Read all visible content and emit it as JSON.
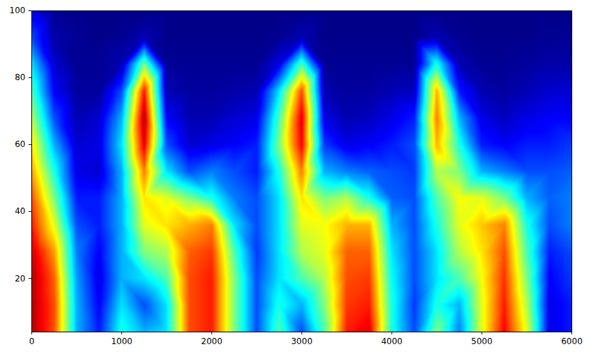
{
  "chart_data": {
    "type": "heatmap",
    "x": [
      0,
      250,
      500,
      750,
      1000,
      1250,
      1500,
      1750,
      2000,
      2250,
      2500,
      2750,
      3000,
      3250,
      3500,
      3750,
      4000,
      4250,
      4500,
      4750,
      5000,
      5250,
      5500,
      5750,
      6000
    ],
    "y": [
      4,
      12,
      20,
      28,
      36,
      44,
      52,
      60,
      68,
      76,
      84,
      92,
      100
    ],
    "values": [
      [
        0.95,
        0.95,
        0.95,
        0.92,
        0.85,
        0.8,
        0.72,
        0.65,
        0.55,
        0.45,
        0.35,
        0.2,
        0.1
      ],
      [
        0.8,
        0.8,
        0.78,
        0.72,
        0.6,
        0.5,
        0.4,
        0.3,
        0.2,
        0.12,
        0.08,
        0.04,
        0.02
      ],
      [
        0.3,
        0.3,
        0.28,
        0.25,
        0.2,
        0.15,
        0.1,
        0.08,
        0.05,
        0.03,
        0.02,
        0.02,
        0.01
      ],
      [
        0.15,
        0.12,
        0.1,
        0.12,
        0.15,
        0.15,
        0.08,
        0.1,
        0.08,
        0.03,
        0.02,
        0.01,
        0.01
      ],
      [
        0.4,
        0.35,
        0.3,
        0.3,
        0.3,
        0.3,
        0.3,
        0.35,
        0.3,
        0.2,
        0.05,
        0.02,
        0.01
      ],
      [
        0.3,
        0.2,
        0.35,
        0.5,
        0.6,
        0.65,
        0.75,
        0.9,
        0.95,
        0.85,
        0.5,
        0.05,
        0.01
      ],
      [
        0.35,
        0.35,
        0.45,
        0.55,
        0.65,
        0.6,
        0.35,
        0.2,
        0.12,
        0.05,
        0.02,
        0.01,
        0.01
      ],
      [
        0.8,
        0.8,
        0.8,
        0.78,
        0.7,
        0.5,
        0.2,
        0.08,
        0.05,
        0.03,
        0.02,
        0.01,
        0.01
      ],
      [
        0.85,
        0.85,
        0.85,
        0.82,
        0.75,
        0.4,
        0.25,
        0.1,
        0.05,
        0.03,
        0.02,
        0.01,
        0.01
      ],
      [
        0.5,
        0.5,
        0.5,
        0.45,
        0.35,
        0.25,
        0.2,
        0.12,
        0.08,
        0.04,
        0.02,
        0.01,
        0.01
      ],
      [
        0.2,
        0.2,
        0.2,
        0.18,
        0.2,
        0.2,
        0.15,
        0.15,
        0.1,
        0.05,
        0.02,
        0.01,
        0.01
      ],
      [
        0.45,
        0.4,
        0.35,
        0.35,
        0.35,
        0.35,
        0.4,
        0.5,
        0.45,
        0.35,
        0.1,
        0.02,
        0.01
      ],
      [
        0.2,
        0.3,
        0.45,
        0.55,
        0.6,
        0.65,
        0.75,
        0.88,
        0.9,
        0.8,
        0.45,
        0.05,
        0.01
      ],
      [
        0.45,
        0.5,
        0.55,
        0.6,
        0.62,
        0.5,
        0.3,
        0.18,
        0.1,
        0.05,
        0.02,
        0.01,
        0.01
      ],
      [
        0.85,
        0.82,
        0.8,
        0.78,
        0.7,
        0.55,
        0.25,
        0.1,
        0.05,
        0.03,
        0.02,
        0.01,
        0.01
      ],
      [
        0.9,
        0.85,
        0.82,
        0.78,
        0.7,
        0.4,
        0.22,
        0.12,
        0.06,
        0.03,
        0.02,
        0.01,
        0.01
      ],
      [
        0.4,
        0.4,
        0.38,
        0.35,
        0.3,
        0.22,
        0.2,
        0.15,
        0.1,
        0.05,
        0.02,
        0.01,
        0.01
      ],
      [
        0.2,
        0.18,
        0.2,
        0.2,
        0.2,
        0.2,
        0.18,
        0.2,
        0.15,
        0.06,
        0.02,
        0.01,
        0.01
      ],
      [
        0.5,
        0.4,
        0.35,
        0.35,
        0.4,
        0.45,
        0.55,
        0.7,
        0.75,
        0.7,
        0.4,
        0.05,
        0.01
      ],
      [
        0.25,
        0.3,
        0.45,
        0.55,
        0.6,
        0.62,
        0.5,
        0.4,
        0.3,
        0.15,
        0.05,
        0.02,
        0.01
      ],
      [
        0.6,
        0.6,
        0.62,
        0.65,
        0.68,
        0.6,
        0.3,
        0.15,
        0.1,
        0.05,
        0.02,
        0.01,
        0.01
      ],
      [
        0.88,
        0.85,
        0.83,
        0.8,
        0.75,
        0.5,
        0.25,
        0.12,
        0.06,
        0.03,
        0.02,
        0.01,
        0.01
      ],
      [
        0.6,
        0.55,
        0.5,
        0.45,
        0.4,
        0.3,
        0.2,
        0.15,
        0.1,
        0.05,
        0.03,
        0.01,
        0.01
      ],
      [
        0.1,
        0.1,
        0.12,
        0.15,
        0.2,
        0.22,
        0.2,
        0.15,
        0.12,
        0.08,
        0.04,
        0.02,
        0.01
      ],
      [
        0.15,
        0.15,
        0.18,
        0.2,
        0.25,
        0.25,
        0.22,
        0.18,
        0.12,
        0.08,
        0.04,
        0.02,
        0.01
      ]
    ],
    "zlim": [
      0,
      1
    ],
    "xlim": [
      0,
      6000
    ],
    "xticks": [
      0,
      1000,
      2000,
      3000,
      4000,
      5000,
      6000
    ],
    "ylim": [
      4,
      100
    ],
    "yticks": [
      20,
      40,
      60,
      80,
      100
    ]
  }
}
